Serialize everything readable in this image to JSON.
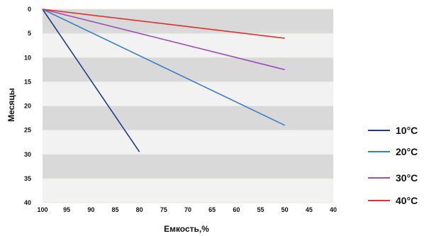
{
  "chart_data": {
    "type": "line",
    "title": "",
    "xlabel": "Емкость,%",
    "ylabel": "Месяцы",
    "xlim": [
      100,
      40
    ],
    "ylim": [
      0,
      40
    ],
    "x_ticks": [
      "100",
      "95",
      "90",
      "85",
      "80",
      "75",
      "70",
      "65",
      "60",
      "55",
      "50",
      "45",
      "40"
    ],
    "y_ticks": [
      "0",
      "5",
      "10",
      "15",
      "20",
      "25",
      "30",
      "35",
      "40"
    ],
    "y_reversed": true,
    "grid": "alternating horizontal bands",
    "band_colors": [
      "#d9d9d9",
      "#f2f2f2"
    ],
    "legend_position": "right",
    "series": [
      {
        "name": "10°C",
        "color": "#1f3c88",
        "points": [
          [
            100,
            0
          ],
          [
            80,
            29.5
          ]
        ]
      },
      {
        "name": "20°C",
        "color": "#3a7fc4",
        "points": [
          [
            100,
            0
          ],
          [
            50,
            24
          ]
        ]
      },
      {
        "name": "30°C",
        "color": "#9b4fb4",
        "points": [
          [
            100,
            0
          ],
          [
            50,
            12.5
          ]
        ]
      },
      {
        "name": "40°C",
        "color": "#e03030",
        "points": [
          [
            100,
            0
          ],
          [
            50,
            6
          ]
        ]
      }
    ]
  }
}
